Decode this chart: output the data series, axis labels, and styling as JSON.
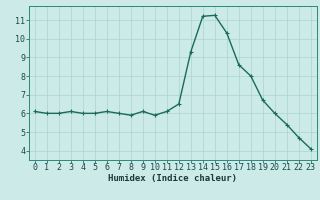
{
  "x": [
    0,
    1,
    2,
    3,
    4,
    5,
    6,
    7,
    8,
    9,
    10,
    11,
    12,
    13,
    14,
    15,
    16,
    17,
    18,
    19,
    20,
    21,
    22,
    23
  ],
  "y": [
    6.1,
    6.0,
    6.0,
    6.1,
    6.0,
    6.0,
    6.1,
    6.0,
    5.9,
    6.1,
    5.9,
    6.1,
    6.5,
    9.3,
    11.2,
    11.25,
    10.3,
    8.6,
    8.0,
    6.7,
    6.0,
    5.4,
    4.7,
    4.1
  ],
  "xlabel": "Humidex (Indice chaleur)",
  "xlim": [
    -0.5,
    23.5
  ],
  "ylim": [
    3.5,
    11.75
  ],
  "yticks": [
    4,
    5,
    6,
    7,
    8,
    9,
    10,
    11
  ],
  "xticks": [
    0,
    1,
    2,
    3,
    4,
    5,
    6,
    7,
    8,
    9,
    10,
    11,
    12,
    13,
    14,
    15,
    16,
    17,
    18,
    19,
    20,
    21,
    22,
    23
  ],
  "bg_color": "#cceae8",
  "grid_color": "#aad4d0",
  "line_color": "#1a6b5a",
  "marker_color": "#1a6b5a",
  "axis_color": "#2a8a7a",
  "tick_label_color": "#1a4a4a",
  "xlabel_color": "#1a3a3a",
  "xlabel_fontsize": 6.5,
  "tick_fontsize": 6.0,
  "line_width": 1.0,
  "marker_size": 2.5
}
